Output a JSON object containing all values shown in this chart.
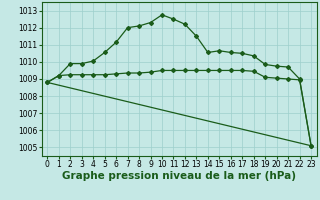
{
  "title": "Graphe pression niveau de la mer (hPa)",
  "background_color": "#c5e8e5",
  "grid_color": "#9ecfcc",
  "line_color": "#1a5c1a",
  "xlim": [
    -0.5,
    23.5
  ],
  "ylim": [
    1004.5,
    1013.5
  ],
  "yticks": [
    1005,
    1006,
    1007,
    1008,
    1009,
    1010,
    1011,
    1012,
    1013
  ],
  "xticks": [
    0,
    1,
    2,
    3,
    4,
    5,
    6,
    7,
    8,
    9,
    10,
    11,
    12,
    13,
    14,
    15,
    16,
    17,
    18,
    19,
    20,
    21,
    22,
    23
  ],
  "line1_x": [
    0,
    1,
    2,
    3,
    4,
    5,
    6,
    7,
    8,
    9,
    10,
    11,
    12,
    13,
    14,
    15,
    16,
    17,
    18,
    19,
    20,
    21,
    22,
    23
  ],
  "line1_y": [
    1008.8,
    1009.2,
    1009.9,
    1009.9,
    1010.05,
    1010.55,
    1011.15,
    1012.0,
    1012.1,
    1012.3,
    1012.75,
    1012.5,
    1012.2,
    1011.5,
    1010.55,
    1010.65,
    1010.55,
    1010.5,
    1010.35,
    1009.85,
    1009.75,
    1009.7,
    1009.0,
    1005.1
  ],
  "line2_x": [
    0,
    1,
    2,
    3,
    4,
    5,
    6,
    7,
    8,
    9,
    10,
    11,
    12,
    13,
    14,
    15,
    16,
    17,
    18,
    19,
    20,
    21,
    22,
    23
  ],
  "line2_y": [
    1008.8,
    1009.2,
    1009.25,
    1009.25,
    1009.25,
    1009.25,
    1009.3,
    1009.35,
    1009.35,
    1009.4,
    1009.5,
    1009.5,
    1009.5,
    1009.5,
    1009.5,
    1009.5,
    1009.5,
    1009.5,
    1009.45,
    1009.1,
    1009.05,
    1009.0,
    1008.95,
    1005.1
  ],
  "line3_x": [
    0,
    23
  ],
  "line3_y": [
    1008.8,
    1005.1
  ],
  "marker": "D",
  "marker_size": 2.0,
  "line_width": 0.9,
  "title_fontsize": 7.5,
  "tick_fontsize": 5.5
}
